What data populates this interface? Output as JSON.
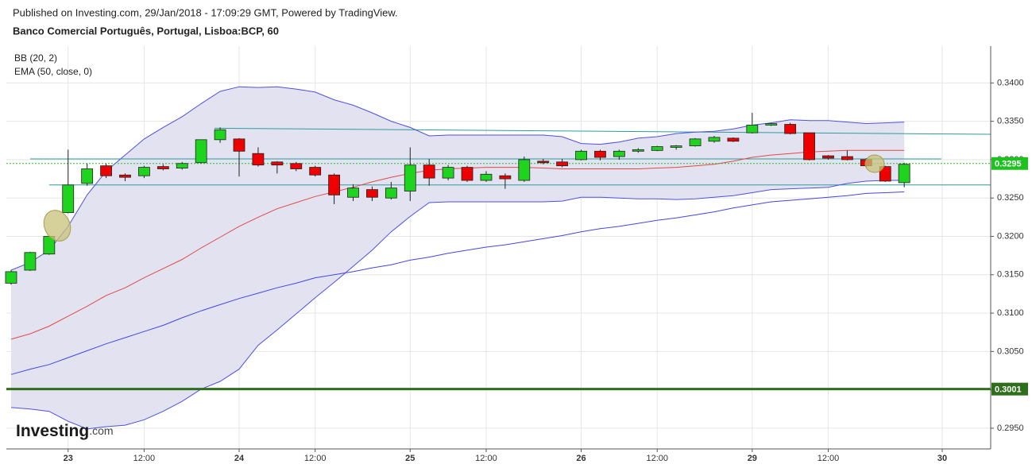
{
  "chart_data": {
    "type": "candlestick",
    "title": "Published on Investing.com, 29/Jan/2018 - 17:09:29 GMT, Powered by TradingView.",
    "subtitle": "Banco Comercial Português, Portugal, Lisboa:BCP, 60",
    "watermark": {
      "name": "Investing",
      "suffix": ".com"
    },
    "up_color": "#1ed41e",
    "down_color": "#ee0000",
    "grid": true,
    "open": [
      0.3139,
      0.3156,
      0.3177,
      0.3231,
      0.3269,
      0.3292,
      0.328,
      0.3279,
      0.3291,
      0.3289,
      0.3296,
      0.3326,
      0.3327,
      0.3308,
      0.3297,
      0.3295,
      0.329,
      0.328,
      0.3251,
      0.3261,
      0.325,
      0.3259,
      0.3293,
      0.3276,
      0.329,
      0.3273,
      0.3279,
      0.3273,
      0.3298,
      0.3297,
      0.33,
      0.3311,
      0.3304,
      0.3311,
      0.3312,
      0.3316,
      0.3318,
      0.3324,
      0.3328,
      0.3335,
      0.3345,
      0.3346,
      0.3335,
      0.3305,
      0.3304,
      0.33,
      0.3291,
      0.327
    ],
    "high": [
      0.3156,
      0.318,
      0.3201,
      0.3313,
      0.3295,
      0.3295,
      0.3282,
      0.3292,
      0.3294,
      0.3297,
      0.3326,
      0.3342,
      0.3328,
      0.3316,
      0.3298,
      0.3297,
      0.3292,
      0.3282,
      0.3268,
      0.3265,
      0.3271,
      0.3316,
      0.3301,
      0.3293,
      0.3292,
      0.3285,
      0.3282,
      0.3304,
      0.3301,
      0.3301,
      0.3313,
      0.3313,
      0.3313,
      0.3315,
      0.3318,
      0.3319,
      0.3328,
      0.3331,
      0.3329,
      0.3361,
      0.3348,
      0.3348,
      0.3335,
      0.3306,
      0.3312,
      0.3302,
      0.3292,
      0.3296
    ],
    "low": [
      0.3137,
      0.3155,
      0.3176,
      0.323,
      0.3266,
      0.3276,
      0.3272,
      0.3276,
      0.3286,
      0.3287,
      0.3295,
      0.3322,
      0.3278,
      0.3291,
      0.3282,
      0.3285,
      0.3278,
      0.3242,
      0.3246,
      0.3246,
      0.3248,
      0.3246,
      0.3266,
      0.3273,
      0.3271,
      0.3271,
      0.3262,
      0.3271,
      0.3294,
      0.329,
      0.3299,
      0.3299,
      0.33,
      0.3309,
      0.3311,
      0.3313,
      0.3317,
      0.3322,
      0.3323,
      0.3334,
      0.3344,
      0.3333,
      0.3299,
      0.33,
      0.3299,
      0.329,
      0.3271,
      0.3264
    ],
    "close": [
      0.3154,
      0.3179,
      0.32,
      0.3267,
      0.3288,
      0.3279,
      0.3277,
      0.329,
      0.3288,
      0.3295,
      0.3326,
      0.3339,
      0.3311,
      0.3293,
      0.3293,
      0.3288,
      0.328,
      0.3254,
      0.3263,
      0.3251,
      0.3263,
      0.3293,
      0.3276,
      0.329,
      0.3273,
      0.3281,
      0.3275,
      0.33,
      0.3296,
      0.3292,
      0.3311,
      0.3303,
      0.3311,
      0.3313,
      0.3317,
      0.3318,
      0.3327,
      0.3329,
      0.3324,
      0.3345,
      0.3347,
      0.3334,
      0.33,
      0.3302,
      0.33,
      0.3292,
      0.3272,
      0.3294
    ],
    "indicators": [
      {
        "name": "BB (20, 2)",
        "color": "#5050e0",
        "fill": "#e2e2f0",
        "basis_color": "#e04a4a",
        "upper": [
          0.3156,
          0.3166,
          0.3182,
          0.3213,
          0.3254,
          0.3285,
          0.3306,
          0.3327,
          0.3342,
          0.3356,
          0.3373,
          0.3389,
          0.3395,
          0.3394,
          0.3395,
          0.3392,
          0.3388,
          0.3378,
          0.3371,
          0.3361,
          0.335,
          0.3342,
          0.3331,
          0.3332,
          0.3332,
          0.3332,
          0.3332,
          0.3332,
          0.3332,
          0.333,
          0.3321,
          0.332,
          0.3323,
          0.3328,
          0.333,
          0.3334,
          0.3336,
          0.3337,
          0.334,
          0.3345,
          0.3348,
          0.3352,
          0.3351,
          0.3351,
          0.3349,
          0.3347,
          0.3348,
          0.3349
        ],
        "basis": [
          0.3066,
          0.3073,
          0.3083,
          0.3096,
          0.3109,
          0.3123,
          0.3133,
          0.3146,
          0.3158,
          0.317,
          0.3185,
          0.3199,
          0.3213,
          0.3225,
          0.3236,
          0.3244,
          0.3252,
          0.3258,
          0.3264,
          0.3271,
          0.3277,
          0.3282,
          0.3286,
          0.3288,
          0.3289,
          0.329,
          0.329,
          0.329,
          0.3289,
          0.3288,
          0.3288,
          0.3288,
          0.3288,
          0.3288,
          0.3289,
          0.329,
          0.3292,
          0.3294,
          0.3298,
          0.3303,
          0.3306,
          0.3308,
          0.331,
          0.3311,
          0.3312,
          0.3312,
          0.3312,
          0.3312
        ],
        "lower": [
          0.2977,
          0.2975,
          0.2972,
          0.2959,
          0.2949,
          0.2952,
          0.2954,
          0.2961,
          0.2972,
          0.2985,
          0.3001,
          0.3011,
          0.3027,
          0.3058,
          0.3078,
          0.3099,
          0.312,
          0.314,
          0.3161,
          0.3182,
          0.3206,
          0.3226,
          0.3244,
          0.3245,
          0.3245,
          0.3245,
          0.3245,
          0.3245,
          0.3245,
          0.3246,
          0.3251,
          0.3251,
          0.325,
          0.3249,
          0.3249,
          0.3248,
          0.3249,
          0.3251,
          0.3253,
          0.3257,
          0.3261,
          0.3262,
          0.3263,
          0.3264,
          0.3269,
          0.3272,
          0.3273,
          0.3273
        ]
      },
      {
        "name": "EMA (50, close, 0)",
        "color": "#4545e6",
        "values": [
          0.302,
          0.3027,
          0.3033,
          0.3042,
          0.3051,
          0.306,
          0.3068,
          0.3076,
          0.3084,
          0.3094,
          0.3103,
          0.3111,
          0.3119,
          0.3126,
          0.3133,
          0.3139,
          0.3146,
          0.315,
          0.3154,
          0.3159,
          0.3163,
          0.3169,
          0.3173,
          0.3178,
          0.3182,
          0.3186,
          0.3189,
          0.3193,
          0.3197,
          0.3201,
          0.3206,
          0.321,
          0.3213,
          0.3217,
          0.3221,
          0.3224,
          0.3228,
          0.3232,
          0.3237,
          0.3241,
          0.3245,
          0.3247,
          0.3249,
          0.3251,
          0.3253,
          0.3256,
          0.3257,
          0.3258
        ]
      }
    ],
    "trend_lines": [
      {
        "color": "#2f9c9c",
        "x": [
          2,
          51.55
        ],
        "y": [
          0.3267,
          0.3267
        ]
      },
      {
        "color": "#2f9c9c",
        "x": [
          1,
          48.95
        ],
        "y": [
          0.3301,
          0.3301
        ]
      },
      {
        "color": "#2f9c9c",
        "x": [
          10.7,
          51.55
        ],
        "y": [
          0.3341,
          0.3333
        ]
      }
    ],
    "price_lines": [
      {
        "value": 0.3295,
        "color": "#1ec21e",
        "dashed": true
      },
      {
        "value": 0.3001,
        "color": "#2e6e1c",
        "dashed": false
      }
    ],
    "xlim": [
      -0.25,
      51.55
    ],
    "xticks": [
      {
        "value": 3,
        "label": "23"
      },
      {
        "value": 7,
        "label": "12:00"
      },
      {
        "value": 12,
        "label": "24"
      },
      {
        "value": 16,
        "label": "12:00"
      },
      {
        "value": 21,
        "label": "25"
      },
      {
        "value": 25,
        "label": "12:00"
      },
      {
        "value": 30,
        "label": "26"
      },
      {
        "value": 34,
        "label": "12:00"
      },
      {
        "value": 39,
        "label": "29"
      },
      {
        "value": 43,
        "label": "12:00"
      },
      {
        "value": 49,
        "label": "30"
      }
    ],
    "ylim": [
      0.2923,
      0.3448
    ],
    "yticks": [
      {
        "value": 0.295,
        "label": "0.2950"
      },
      {
        "value": 0.3,
        "label": "0.3000"
      },
      {
        "value": 0.305,
        "label": "0.3050"
      },
      {
        "value": 0.31,
        "label": "0.3100"
      },
      {
        "value": 0.315,
        "label": "0.3150"
      },
      {
        "value": 0.32,
        "label": "0.3200"
      },
      {
        "value": 0.325,
        "label": "0.3250"
      },
      {
        "value": 0.33,
        "label": "0.3300"
      },
      {
        "value": 0.335,
        "label": "0.3350"
      },
      {
        "value": 0.34,
        "label": "0.3400"
      }
    ]
  }
}
